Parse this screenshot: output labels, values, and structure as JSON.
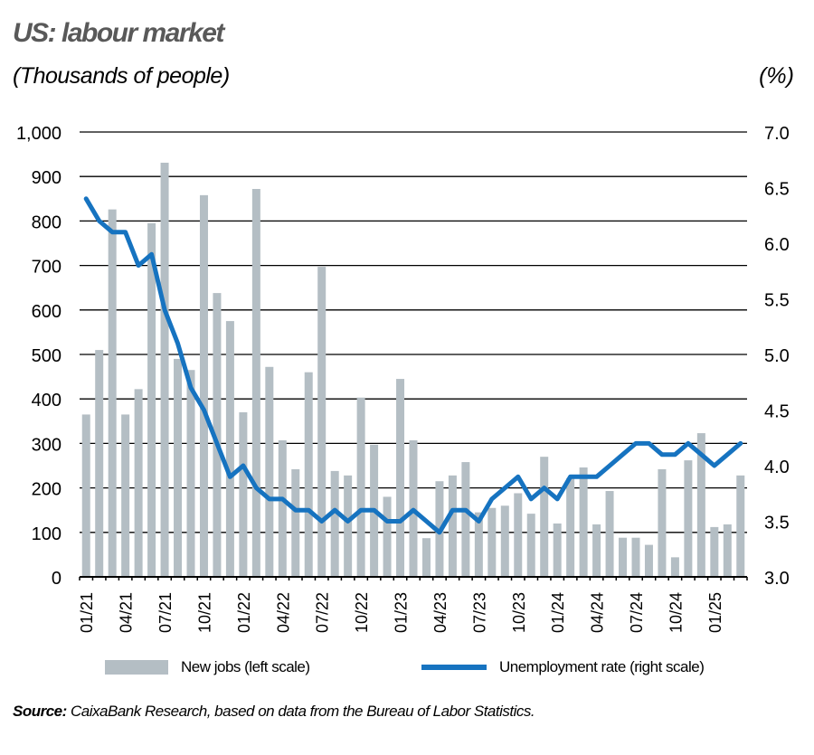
{
  "header": {
    "title": "US: labour market",
    "subtitle": "(Thousands of people)",
    "right_unit": "(%)"
  },
  "legend": {
    "bars": "New jobs (left scale)",
    "line": "Unemployment rate (right scale)"
  },
  "footer": {
    "source_label": "Source:",
    "source_text": " CaixaBank Research, based on data from the Bureau of Labor Statistics."
  },
  "colors": {
    "bars": "#b4bec4",
    "line": "#1673c0",
    "grid": "#000000",
    "title": "#595959"
  },
  "chart_data": {
    "type": "bar+line",
    "title": "US: labour market",
    "subtitle": "(Thousands of people)",
    "xlabel": "",
    "ylabel_left": "Thousands of people",
    "ylabel_right": "%",
    "ylim_left": [
      0,
      1000
    ],
    "ylim_right": [
      3.0,
      7.0
    ],
    "yticks_left": [
      "0",
      "100",
      "200",
      "300",
      "400",
      "500",
      "600",
      "700",
      "800",
      "900",
      "1,000"
    ],
    "yticks_right": [
      "3.0",
      "3.5",
      "4.0",
      "4.5",
      "5.0",
      "5.5",
      "6.0",
      "6.5",
      "7.0"
    ],
    "xtick_labels": [
      "01/21",
      "04/21",
      "07/21",
      "10/21",
      "01/22",
      "04/22",
      "07/22",
      "10/22",
      "01/23",
      "04/23",
      "07/23",
      "10/23",
      "01/24",
      "04/24",
      "07/24",
      "10/24",
      "01/25"
    ],
    "grid": true,
    "legend_position": "bottom",
    "categories": [
      "01/21",
      "02/21",
      "03/21",
      "04/21",
      "05/21",
      "06/21",
      "07/21",
      "08/21",
      "09/21",
      "10/21",
      "11/21",
      "12/21",
      "01/22",
      "02/22",
      "03/22",
      "04/22",
      "05/22",
      "06/22",
      "07/22",
      "08/22",
      "09/22",
      "10/22",
      "11/22",
      "12/22",
      "01/23",
      "02/23",
      "03/23",
      "04/23",
      "05/23",
      "06/23",
      "07/23",
      "08/23",
      "09/23",
      "10/23",
      "11/23",
      "12/23",
      "01/24",
      "02/24",
      "03/24",
      "04/24",
      "05/24",
      "06/24",
      "07/24",
      "08/24",
      "09/24",
      "10/24",
      "11/24",
      "12/24",
      "01/25",
      "02/25",
      "03/25"
    ],
    "series": [
      {
        "name": "New jobs (left scale)",
        "type": "bar",
        "axis": "left",
        "values": [
          365,
          510,
          826,
          365,
          422,
          795,
          931,
          490,
          465,
          858,
          638,
          575,
          370,
          872,
          472,
          307,
          242,
          460,
          697,
          238,
          228,
          403,
          297,
          180,
          445,
          307,
          87,
          215,
          228,
          258,
          145,
          155,
          160,
          188,
          142,
          270,
          120,
          222,
          246,
          118,
          193,
          88,
          88,
          72,
          242,
          44,
          262,
          323,
          112,
          118,
          228
        ]
      },
      {
        "name": "Unemployment rate (right scale)",
        "type": "line",
        "axis": "right",
        "values": [
          6.4,
          6.2,
          6.1,
          6.1,
          5.8,
          5.9,
          5.4,
          5.1,
          4.7,
          4.5,
          4.2,
          3.9,
          4.0,
          3.8,
          3.7,
          3.7,
          3.6,
          3.6,
          3.5,
          3.6,
          3.5,
          3.6,
          3.6,
          3.5,
          3.5,
          3.6,
          3.5,
          3.4,
          3.6,
          3.6,
          3.5,
          3.7,
          3.8,
          3.9,
          3.7,
          3.8,
          3.7,
          3.9,
          3.9,
          3.9,
          4.0,
          4.1,
          4.2,
          4.2,
          4.1,
          4.1,
          4.2,
          4.1,
          4.0,
          4.1,
          4.2
        ]
      }
    ]
  }
}
